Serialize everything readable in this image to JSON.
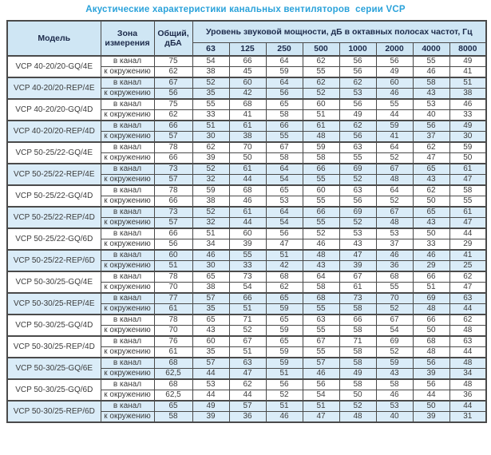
{
  "title": "Акустические характеристики канальных вентиляторов  серии VCP",
  "colors": {
    "title_blue": "#2aa2da",
    "header_bg": "#cfe6f4",
    "shaded_row_bg": "#daecf8",
    "border": "#4a4a4a",
    "header_text": "#1c2a4a",
    "cell_text": "#3c3c3c"
  },
  "table": {
    "headers": {
      "model": "Модель",
      "zone": "Зона\nизмерения",
      "total": "Общий,\nдБА",
      "group": "Уровень звуковой мощности, дБ в октавных полосах частот, Гц",
      "frequencies": [
        "63",
        "125",
        "250",
        "500",
        "1000",
        "2000",
        "4000",
        "8000"
      ]
    },
    "zone_labels": {
      "duct": "в канал",
      "ambient": "к окружению"
    },
    "rows": [
      {
        "model": "VCP 40-20/20-GQ/4E",
        "shaded": false,
        "duct": {
          "total": "75",
          "bands": [
            "54",
            "66",
            "64",
            "62",
            "56",
            "56",
            "55",
            "49"
          ]
        },
        "ambient": {
          "total": "62",
          "bands": [
            "38",
            "45",
            "59",
            "55",
            "56",
            "49",
            "46",
            "41"
          ]
        }
      },
      {
        "model": "VCP 40-20/20-REP/4E",
        "shaded": true,
        "duct": {
          "total": "67",
          "bands": [
            "52",
            "60",
            "64",
            "62",
            "62",
            "60",
            "58",
            "51"
          ]
        },
        "ambient": {
          "total": "56",
          "bands": [
            "35",
            "42",
            "56",
            "52",
            "53",
            "46",
            "43",
            "38"
          ]
        }
      },
      {
        "model": "VCP 40-20/20-GQ/4D",
        "shaded": false,
        "duct": {
          "total": "75",
          "bands": [
            "55",
            "68",
            "65",
            "60",
            "56",
            "55",
            "53",
            "46"
          ]
        },
        "ambient": {
          "total": "62",
          "bands": [
            "33",
            "41",
            "58",
            "51",
            "49",
            "44",
            "40",
            "33"
          ]
        }
      },
      {
        "model": "VCP 40-20/20-REP/4D",
        "shaded": true,
        "duct": {
          "total": "66",
          "bands": [
            "51",
            "61",
            "66",
            "61",
            "62",
            "59",
            "56",
            "49"
          ]
        },
        "ambient": {
          "total": "57",
          "bands": [
            "30",
            "38",
            "55",
            "48",
            "56",
            "41",
            "37",
            "30"
          ]
        }
      },
      {
        "model": "VCP 50-25/22-GQ/4E",
        "shaded": false,
        "duct": {
          "total": "78",
          "bands": [
            "62",
            "70",
            "67",
            "59",
            "63",
            "64",
            "62",
            "59"
          ]
        },
        "ambient": {
          "total": "66",
          "bands": [
            "39",
            "50",
            "58",
            "58",
            "55",
            "52",
            "47",
            "50"
          ]
        }
      },
      {
        "model": "VCP 50-25/22-REP/4E",
        "shaded": true,
        "duct": {
          "total": "73",
          "bands": [
            "52",
            "61",
            "64",
            "66",
            "69",
            "67",
            "65",
            "61"
          ]
        },
        "ambient": {
          "total": "57",
          "bands": [
            "32",
            "44",
            "54",
            "55",
            "52",
            "48",
            "43",
            "47"
          ]
        }
      },
      {
        "model": "VCP 50-25/22-GQ/4D",
        "shaded": false,
        "duct": {
          "total": "78",
          "bands": [
            "59",
            "68",
            "65",
            "60",
            "63",
            "64",
            "62",
            "58"
          ]
        },
        "ambient": {
          "total": "66",
          "bands": [
            "38",
            "46",
            "53",
            "55",
            "56",
            "52",
            "50",
            "55"
          ]
        }
      },
      {
        "model": "VCP 50-25/22-REP/4D",
        "shaded": true,
        "duct": {
          "total": "73",
          "bands": [
            "52",
            "61",
            "64",
            "66",
            "69",
            "67",
            "65",
            "61"
          ]
        },
        "ambient": {
          "total": "57",
          "bands": [
            "32",
            "44",
            "54",
            "55",
            "52",
            "48",
            "43",
            "47"
          ]
        }
      },
      {
        "model": "VCP 50-25/22-GQ/6D",
        "shaded": false,
        "duct": {
          "total": "66",
          "bands": [
            "51",
            "60",
            "56",
            "52",
            "53",
            "53",
            "50",
            "44"
          ]
        },
        "ambient": {
          "total": "56",
          "bands": [
            "34",
            "39",
            "47",
            "46",
            "43",
            "37",
            "33",
            "29"
          ]
        }
      },
      {
        "model": "VCP 50-25/22-REP/6D",
        "shaded": true,
        "duct": {
          "total": "60",
          "bands": [
            "46",
            "55",
            "51",
            "48",
            "47",
            "46",
            "46",
            "41"
          ]
        },
        "ambient": {
          "total": "51",
          "bands": [
            "30",
            "33",
            "42",
            "43",
            "39",
            "36",
            "29",
            "25"
          ]
        }
      },
      {
        "model": "VCP 50-30/25-GQ/4E",
        "shaded": false,
        "duct": {
          "total": "78",
          "bands": [
            "65",
            "73",
            "68",
            "64",
            "67",
            "68",
            "66",
            "62"
          ]
        },
        "ambient": {
          "total": "70",
          "bands": [
            "38",
            "54",
            "62",
            "58",
            "61",
            "55",
            "51",
            "47"
          ]
        }
      },
      {
        "model": "VCP 50-30/25-REP/4E",
        "shaded": true,
        "duct": {
          "total": "77",
          "bands": [
            "57",
            "66",
            "65",
            "68",
            "73",
            "70",
            "69",
            "63"
          ]
        },
        "ambient": {
          "total": "61",
          "bands": [
            "35",
            "51",
            "59",
            "55",
            "58",
            "52",
            "48",
            "44"
          ]
        }
      },
      {
        "model": "VCP 50-30/25-GQ/4D",
        "shaded": false,
        "duct": {
          "total": "78",
          "bands": [
            "65",
            "71",
            "65",
            "63",
            "66",
            "67",
            "66",
            "62"
          ]
        },
        "ambient": {
          "total": "70",
          "bands": [
            "43",
            "52",
            "59",
            "55",
            "58",
            "54",
            "50",
            "48"
          ]
        }
      },
      {
        "model": "VCP 50-30/25-REP/4D",
        "shaded": false,
        "duct": {
          "total": "76",
          "bands": [
            "60",
            "67",
            "65",
            "67",
            "71",
            "69",
            "68",
            "63"
          ]
        },
        "ambient": {
          "total": "61",
          "bands": [
            "35",
            "51",
            "59",
            "55",
            "58",
            "52",
            "48",
            "44"
          ]
        }
      },
      {
        "model": "VCP 50-30/25-GQ/6E",
        "shaded": true,
        "duct": {
          "total": "68",
          "bands": [
            "57",
            "63",
            "59",
            "57",
            "58",
            "59",
            "56",
            "48"
          ]
        },
        "ambient": {
          "total": "62,5",
          "bands": [
            "44",
            "47",
            "51",
            "46",
            "49",
            "43",
            "39",
            "34"
          ]
        }
      },
      {
        "model": "VCP 50-30/25-GQ/6D",
        "shaded": false,
        "duct": {
          "total": "68",
          "bands": [
            "53",
            "62",
            "56",
            "56",
            "58",
            "58",
            "56",
            "48"
          ]
        },
        "ambient": {
          "total": "62,5",
          "bands": [
            "44",
            "44",
            "52",
            "54",
            "50",
            "46",
            "44",
            "36"
          ]
        }
      },
      {
        "model": "VCP 50-30/25-REP/6D",
        "shaded": true,
        "duct": {
          "total": "65",
          "bands": [
            "49",
            "57",
            "51",
            "51",
            "52",
            "53",
            "50",
            "44"
          ]
        },
        "ambient": {
          "total": "58",
          "bands": [
            "39",
            "36",
            "46",
            "47",
            "48",
            "40",
            "39",
            "31"
          ]
        }
      }
    ]
  }
}
